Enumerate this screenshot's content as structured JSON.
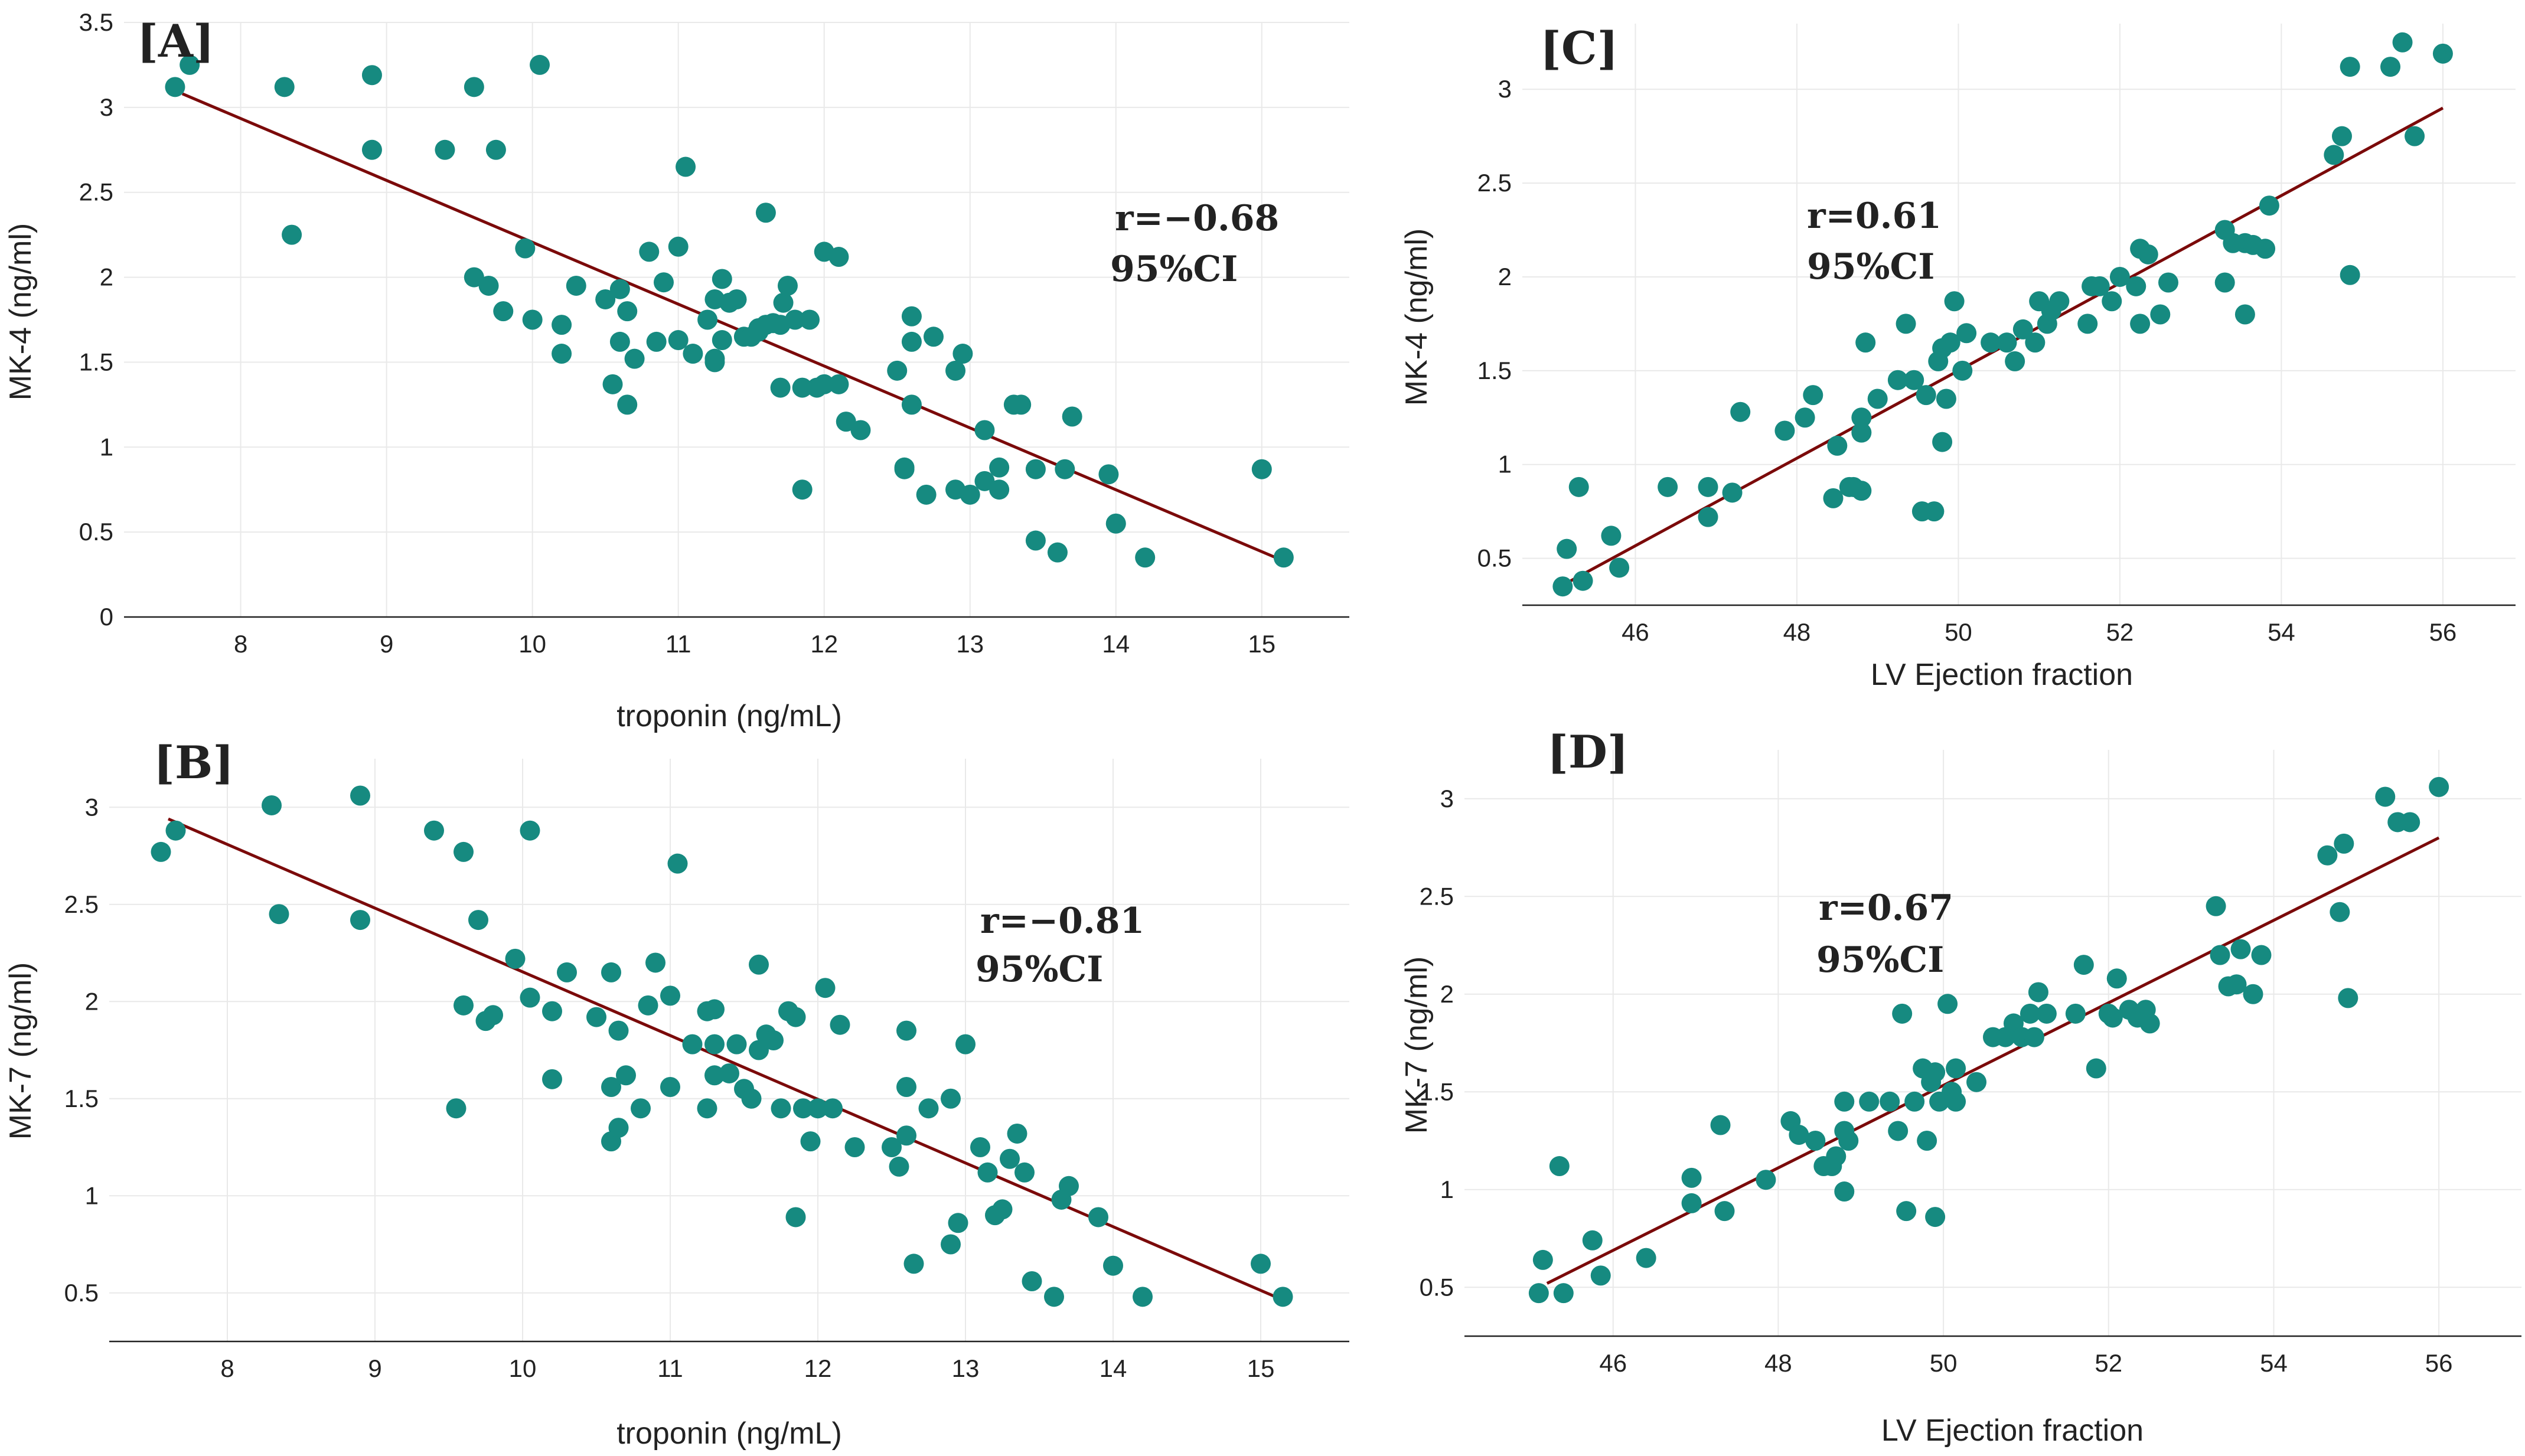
{
  "colors": {
    "point": "#168a80",
    "fit": "#7b0a0a",
    "grid": "#e9e9e9",
    "axis": "#222222"
  },
  "chart_data": [
    {
      "id": "A",
      "type": "scatter",
      "panel_label": "[A]",
      "title": "",
      "xlabel": "troponin (ng/mL)",
      "ylabel": "MK-4 (ng/ml)",
      "xlim": [
        7.2,
        15.6
      ],
      "ylim": [
        0,
        3.5
      ],
      "xticks": [
        8,
        9,
        10,
        11,
        12,
        13,
        14,
        15
      ],
      "yticks": [
        0,
        0.5,
        1,
        1.5,
        2,
        2.5,
        3,
        3.5
      ],
      "ytick_labels": [
        "0",
        "0.5",
        "1",
        "1.5",
        "2",
        "2.5",
        "3",
        "3.5"
      ],
      "annotations": [
        "r=−0.68",
        "95%CI"
      ],
      "fit_line": {
        "x": [
          7.6,
          15.15
        ],
        "y": [
          3.08,
          0.33
        ]
      },
      "x": [
        7.55,
        7.65,
        8.3,
        8.35,
        8.9,
        8.9,
        9.4,
        9.6,
        9.6,
        9.7,
        9.75,
        9.8,
        9.95,
        10.0,
        10.05,
        10.2,
        10.2,
        10.3,
        10.5,
        10.55,
        10.6,
        10.6,
        10.65,
        10.65,
        10.7,
        10.8,
        10.85,
        10.9,
        11.0,
        11.0,
        11.05,
        11.1,
        11.2,
        11.25,
        11.25,
        11.25,
        11.3,
        11.3,
        11.35,
        11.4,
        11.45,
        11.5,
        11.55,
        11.55,
        11.6,
        11.6,
        11.65,
        11.7,
        11.7,
        11.72,
        11.75,
        11.8,
        11.85,
        11.85,
        11.9,
        11.95,
        12.0,
        12.0,
        12.1,
        12.1,
        12.15,
        12.25,
        12.5,
        12.55,
        12.55,
        12.6,
        12.6,
        12.6,
        12.7,
        12.75,
        12.9,
        12.9,
        12.95,
        13.0,
        13.1,
        13.1,
        13.2,
        13.2,
        13.3,
        13.35,
        13.45,
        13.45,
        13.6,
        13.65,
        13.7,
        13.95,
        14.0,
        14.2,
        15.0,
        15.15
      ],
      "y": [
        3.12,
        3.25,
        3.12,
        2.25,
        3.19,
        2.75,
        2.75,
        3.12,
        2.0,
        1.95,
        2.75,
        1.8,
        2.17,
        1.75,
        3.25,
        1.72,
        1.55,
        1.95,
        1.87,
        1.37,
        1.62,
        1.93,
        1.25,
        1.8,
        1.52,
        2.15,
        1.62,
        1.97,
        2.18,
        1.63,
        2.65,
        1.55,
        1.75,
        1.87,
        1.52,
        1.5,
        1.99,
        1.63,
        1.85,
        1.87,
        1.65,
        1.65,
        1.7,
        1.68,
        1.72,
        2.38,
        1.73,
        1.35,
        1.72,
        1.85,
        1.95,
        1.75,
        0.75,
        1.35,
        1.75,
        1.35,
        2.15,
        1.37,
        2.12,
        1.37,
        1.15,
        1.1,
        1.45,
        0.88,
        0.87,
        1.25,
        1.62,
        1.77,
        0.72,
        1.65,
        0.75,
        1.45,
        1.55,
        0.72,
        1.1,
        0.8,
        0.75,
        0.88,
        1.25,
        1.25,
        0.87,
        0.45,
        0.38,
        0.87,
        1.18,
        0.84,
        0.55,
        0.35,
        0.87,
        0.35
      ]
    },
    {
      "id": "B",
      "type": "scatter",
      "panel_label": "[B]",
      "title": "",
      "xlabel": "troponin (ng/mL)",
      "ylabel": "MK-7 (ng/ml)",
      "xlim": [
        7.2,
        15.6
      ],
      "ylim": [
        0.25,
        3.25
      ],
      "xticks": [
        8,
        9,
        10,
        11,
        12,
        13,
        14,
        15
      ],
      "yticks": [
        0.5,
        1,
        1.5,
        2,
        2.5,
        3
      ],
      "ytick_labels": [
        "0.5",
        "1",
        "1.5",
        "2",
        "2.5",
        "3"
      ],
      "annotations": [
        "r=−0.81",
        "95%CI"
      ],
      "fit_line": {
        "x": [
          7.6,
          15.1
        ],
        "y": [
          2.94,
          0.48
        ]
      },
      "x": [
        7.55,
        7.65,
        8.3,
        8.35,
        8.9,
        8.9,
        9.4,
        9.55,
        9.6,
        9.6,
        9.7,
        9.75,
        9.8,
        9.95,
        10.05,
        10.05,
        10.2,
        10.2,
        10.3,
        10.5,
        10.6,
        10.6,
        10.6,
        10.65,
        10.65,
        10.7,
        10.8,
        10.85,
        10.9,
        11.0,
        11.0,
        11.05,
        11.15,
        11.25,
        11.25,
        11.3,
        11.3,
        11.3,
        11.4,
        11.45,
        11.5,
        11.55,
        11.6,
        11.6,
        11.65,
        11.7,
        11.75,
        11.8,
        11.85,
        11.85,
        11.9,
        11.95,
        12.0,
        12.05,
        12.1,
        12.15,
        12.25,
        12.5,
        12.55,
        12.6,
        12.6,
        12.6,
        12.65,
        12.75,
        12.9,
        12.9,
        12.95,
        13.0,
        13.1,
        13.15,
        13.2,
        13.25,
        13.3,
        13.35,
        13.4,
        13.45,
        13.6,
        13.65,
        13.7,
        13.9,
        14.0,
        14.2,
        15.0,
        15.15
      ],
      "y": [
        2.77,
        2.88,
        3.01,
        2.45,
        3.06,
        2.42,
        2.88,
        1.45,
        1.98,
        2.77,
        2.42,
        1.9,
        1.93,
        2.22,
        2.88,
        2.02,
        1.6,
        1.95,
        2.15,
        1.92,
        1.28,
        2.15,
        1.56,
        1.35,
        1.85,
        1.62,
        1.45,
        1.98,
        2.2,
        1.56,
        2.03,
        2.71,
        1.78,
        1.95,
        1.45,
        1.62,
        1.78,
        1.96,
        1.63,
        1.78,
        1.55,
        1.5,
        1.75,
        2.19,
        1.83,
        1.8,
        1.45,
        1.95,
        1.92,
        0.89,
        1.45,
        1.28,
        1.45,
        2.07,
        1.45,
        1.88,
        1.25,
        1.25,
        1.15,
        1.31,
        1.85,
        1.56,
        0.65,
        1.45,
        0.75,
        1.5,
        0.86,
        1.78,
        1.25,
        1.12,
        0.9,
        0.93,
        1.19,
        1.32,
        1.12,
        0.56,
        0.48,
        0.98,
        1.05,
        0.89,
        0.64,
        0.48,
        0.65,
        0.48
      ]
    },
    {
      "id": "C",
      "type": "scatter",
      "panel_label": "[C]",
      "title": "",
      "xlabel": "LV Ejection fraction",
      "ylabel": "MK-4 (ng/ml)",
      "xlim": [
        44.6,
        56.9
      ],
      "ylim": [
        0.25,
        3.35
      ],
      "xticks": [
        46,
        48,
        50,
        52,
        54,
        56
      ],
      "yticks": [
        0.5,
        1,
        1.5,
        2,
        2.5,
        3
      ],
      "ytick_labels": [
        "0.5",
        "1",
        "1.5",
        "2",
        "2.5",
        "3"
      ],
      "annotations": [
        "r=0.61",
        "95%CI"
      ],
      "fit_line": {
        "x": [
          45.2,
          56.0
        ],
        "y": [
          0.38,
          2.9
        ]
      },
      "x": [
        45.1,
        45.15,
        45.3,
        45.35,
        45.7,
        45.8,
        46.4,
        46.9,
        46.9,
        47.2,
        47.3,
        47.85,
        48.1,
        48.2,
        48.45,
        48.5,
        48.65,
        48.7,
        48.8,
        48.8,
        48.8,
        48.85,
        49.0,
        49.25,
        49.35,
        49.45,
        49.55,
        49.6,
        49.7,
        49.75,
        49.8,
        49.8,
        49.85,
        49.9,
        49.95,
        50.05,
        50.1,
        50.4,
        50.6,
        50.7,
        50.8,
        50.95,
        51.0,
        51.1,
        51.15,
        51.25,
        51.6,
        51.65,
        51.75,
        51.9,
        52.0,
        52.2,
        52.25,
        52.25,
        52.35,
        52.5,
        52.6,
        53.3,
        53.3,
        53.4,
        53.55,
        53.55,
        53.65,
        53.8,
        53.85,
        54.65,
        54.75,
        54.85,
        54.85,
        55.35,
        55.5,
        55.65,
        56.0
      ],
      "y": [
        0.35,
        0.55,
        0.88,
        0.38,
        0.62,
        0.45,
        0.88,
        0.72,
        0.88,
        0.85,
        1.28,
        1.18,
        1.25,
        1.37,
        0.82,
        1.1,
        0.88,
        0.88,
        1.25,
        1.17,
        0.86,
        1.65,
        1.35,
        1.45,
        1.75,
        1.45,
        0.75,
        1.37,
        0.75,
        1.55,
        1.12,
        1.62,
        1.35,
        1.65,
        1.87,
        1.5,
        1.7,
        1.65,
        1.65,
        1.55,
        1.72,
        1.65,
        1.87,
        1.75,
        1.82,
        1.87,
        1.75,
        1.95,
        1.95,
        1.87,
        2.0,
        1.95,
        2.15,
        1.75,
        2.12,
        1.8,
        1.97,
        1.97,
        2.25,
        2.18,
        1.8,
        2.18,
        2.17,
        2.15,
        2.38,
        2.65,
        2.75,
        2.01,
        3.12,
        3.12,
        3.25,
        2.75,
        3.19
      ]
    },
    {
      "id": "D",
      "type": "scatter",
      "panel_label": "[D]",
      "title": "",
      "xlabel": "LV Ejection fraction",
      "ylabel": "MK-7 (ng/ml)",
      "xlim": [
        44.2,
        57.0
      ],
      "ylim": [
        0.25,
        3.25
      ],
      "xticks": [
        46,
        48,
        50,
        52,
        54,
        56
      ],
      "yticks": [
        0.5,
        1,
        1.5,
        2,
        2.5,
        3
      ],
      "ytick_labels": [
        "0.5",
        "1",
        "1.5",
        "2",
        "2.5",
        "3"
      ],
      "annotations": [
        "r=0.67",
        "95%CI"
      ],
      "fit_line": {
        "x": [
          45.2,
          56.0
        ],
        "y": [
          0.52,
          2.8
        ]
      },
      "x": [
        45.1,
        45.15,
        45.35,
        45.4,
        45.75,
        45.85,
        46.4,
        46.95,
        46.95,
        47.3,
        47.35,
        47.85,
        48.15,
        48.25,
        48.45,
        48.55,
        48.65,
        48.7,
        48.8,
        48.8,
        48.8,
        48.85,
        49.1,
        49.35,
        49.45,
        49.5,
        49.55,
        49.65,
        49.75,
        49.8,
        49.85,
        49.9,
        49.9,
        49.95,
        50.05,
        50.1,
        50.15,
        50.15,
        50.4,
        50.6,
        50.75,
        50.85,
        50.95,
        51.05,
        51.1,
        51.15,
        51.25,
        51.6,
        51.7,
        51.85,
        52.0,
        52.05,
        52.1,
        52.25,
        52.35,
        52.45,
        52.5,
        53.3,
        53.35,
        53.45,
        53.55,
        53.6,
        53.75,
        53.85,
        54.65,
        54.8,
        54.85,
        54.9,
        55.35,
        55.5,
        55.65,
        56.0
      ],
      "y": [
        0.47,
        0.64,
        1.12,
        0.47,
        0.74,
        0.56,
        0.65,
        1.06,
        0.93,
        1.33,
        0.89,
        1.05,
        1.35,
        1.28,
        1.25,
        1.12,
        1.12,
        1.17,
        1.3,
        1.45,
        0.99,
        1.25,
        1.45,
        1.45,
        1.3,
        1.9,
        0.89,
        1.45,
        1.62,
        1.25,
        1.55,
        0.86,
        1.6,
        1.45,
        1.95,
        1.5,
        1.62,
        1.45,
        1.55,
        1.78,
        1.78,
        1.85,
        1.78,
        1.9,
        1.78,
        2.01,
        1.9,
        1.9,
        2.15,
        1.62,
        1.9,
        1.88,
        2.08,
        1.92,
        1.88,
        1.92,
        1.85,
        2.45,
        2.2,
        2.04,
        2.05,
        2.23,
        2.0,
        2.2,
        2.71,
        2.42,
        2.77,
        1.98,
        3.01,
        2.88,
        2.88,
        3.06
      ]
    }
  ]
}
